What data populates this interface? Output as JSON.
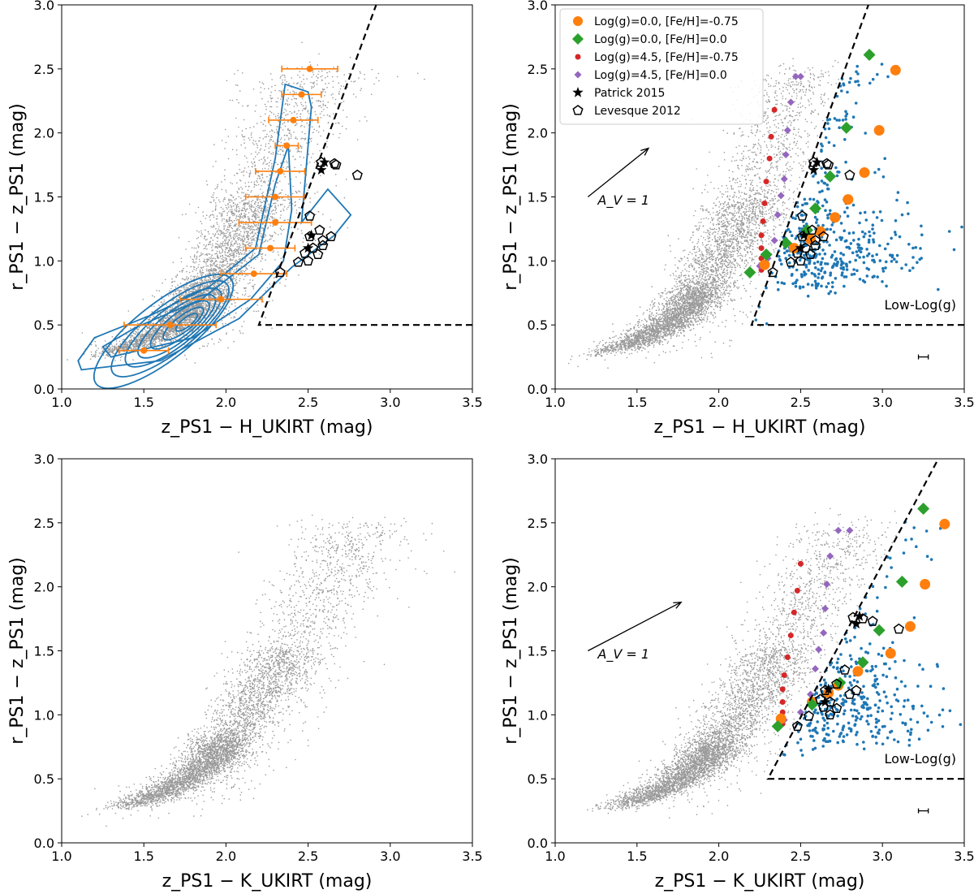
{
  "figure": {
    "colors": {
      "background_points": "#999999",
      "selected_points": "#1f77b4",
      "orange": "#ff7f0e",
      "green": "#2ca02c",
      "red": "#d62728",
      "purple": "#9467bd",
      "contour": "#1f77b4",
      "lines": "#000000"
    }
  },
  "chart_data": [
    {
      "panel": "top-left",
      "type": "scatter",
      "title": "",
      "xlabel": "z_PS1 − H_UKIRT (mag)",
      "ylabel": "r_PS1 − z_PS1 (mag)",
      "xlim": [
        1.0,
        3.5
      ],
      "ylim": [
        0.0,
        3.0
      ],
      "xticks": [
        "1.0",
        "1.5",
        "2.0",
        "2.5",
        "3.0",
        "3.5"
      ],
      "yticks": [
        "0.0",
        "0.5",
        "1.0",
        "1.5",
        "2.0",
        "2.5",
        "3.0"
      ],
      "color_index": "H",
      "has_contours": true,
      "binned_means": {
        "y": [
          0.3,
          0.5,
          0.7,
          0.9,
          1.1,
          1.3,
          1.5,
          1.7,
          1.9,
          2.1,
          2.3,
          2.5
        ],
        "x": [
          1.5,
          1.66,
          1.97,
          2.17,
          2.27,
          2.3,
          2.3,
          2.33,
          2.37,
          2.41,
          2.46,
          2.51
        ],
        "xerr": [
          0.15,
          0.28,
          0.25,
          0.2,
          0.15,
          0.22,
          0.18,
          0.15,
          0.07,
          0.15,
          0.12,
          0.17
        ]
      },
      "patrick2015": {
        "x": [
          2.5,
          2.52,
          2.58,
          2.6
        ],
        "y": [
          1.1,
          1.2,
          1.71,
          1.77
        ]
      },
      "levesque2012": {
        "x": [
          2.33,
          2.44,
          2.48,
          2.53,
          2.51,
          2.57,
          2.59,
          2.64,
          2.66,
          2.58,
          2.67,
          2.8,
          2.51,
          2.56,
          2.59,
          2.5
        ],
        "y": [
          0.91,
          0.99,
          1.06,
          1.1,
          1.19,
          1.24,
          1.16,
          1.19,
          1.76,
          1.77,
          1.75,
          1.67,
          1.35,
          1.05,
          1.12,
          1.0
        ]
      },
      "selection_boundary": {
        "x_min": 2.2,
        "y_min": 0.5,
        "slope": 3.5
      }
    },
    {
      "panel": "top-right",
      "type": "scatter",
      "title": "",
      "xlabel": "z_PS1 − H_UKIRT (mag)",
      "ylabel": "r_PS1 − z_PS1 (mag)",
      "xlim": [
        1.0,
        3.5
      ],
      "ylim": [
        0.0,
        3.0
      ],
      "xticks": [
        "1.0",
        "1.5",
        "2.0",
        "2.5",
        "3.0",
        "3.5"
      ],
      "yticks": [
        "0.0",
        "0.5",
        "1.0",
        "1.5",
        "2.0",
        "2.5",
        "3.0"
      ],
      "color_index": "H",
      "legend": {
        "position": "top-left",
        "entries": [
          {
            "label": "Log(g)=0.0, [Fe/H]=-0.75",
            "marker": "circle-large",
            "color": "#ff7f0e"
          },
          {
            "label": "Log(g)=0.0, [Fe/H]=0.0",
            "marker": "diamond-large",
            "color": "#2ca02c"
          },
          {
            "label": "Log(g)=4.5, [Fe/H]=-0.75",
            "marker": "circle-small",
            "color": "#d62728"
          },
          {
            "label": "Log(g)=4.5, [Fe/H]=0.0",
            "marker": "diamond-small",
            "color": "#9467bd"
          },
          {
            "label": "Patrick 2015",
            "marker": "star",
            "color": "#000000"
          },
          {
            "label": "Levesque 2012",
            "marker": "pentagon-open",
            "color": "#000000"
          }
        ]
      },
      "annotation": "A_V = 1",
      "region_label": "Low-Log(g)",
      "model_logg0_feh075": {
        "x": [
          2.28,
          2.46,
          2.56,
          2.62,
          2.71,
          2.79,
          2.89,
          2.98,
          3.08
        ],
        "y": [
          0.97,
          1.1,
          1.17,
          1.23,
          1.34,
          1.48,
          1.69,
          2.02,
          2.49
        ]
      },
      "model_logg0_feh0": {
        "x": [
          2.19,
          2.29,
          2.41,
          2.54,
          2.59,
          2.68,
          2.78,
          2.92
        ],
        "y": [
          0.91,
          1.05,
          1.14,
          1.24,
          1.41,
          1.66,
          2.04,
          2.61
        ]
      },
      "model_logg45_feh075": {
        "x": [
          2.26,
          2.26,
          2.26,
          2.26,
          2.27,
          2.28,
          2.29,
          2.31,
          2.32,
          2.34
        ],
        "y": [
          0.93,
          1.02,
          1.1,
          1.2,
          1.31,
          1.45,
          1.62,
          1.8,
          1.97,
          2.18
        ]
      },
      "model_logg45_feh0": {
        "x": [
          2.25,
          2.3,
          2.34,
          2.36,
          2.38,
          2.4,
          2.41,
          2.42,
          2.44,
          2.47,
          2.5
        ],
        "y": [
          0.96,
          1.02,
          1.16,
          1.36,
          1.51,
          1.64,
          1.83,
          2.02,
          2.24,
          2.44,
          2.44
        ]
      },
      "patrick2015": {
        "x": [
          2.5,
          2.52,
          2.58,
          2.6
        ],
        "y": [
          1.1,
          1.2,
          1.71,
          1.77
        ]
      },
      "levesque2012": {
        "x": [
          2.33,
          2.44,
          2.48,
          2.53,
          2.51,
          2.57,
          2.59,
          2.64,
          2.66,
          2.58,
          2.67,
          2.8,
          2.51,
          2.56,
          2.59,
          2.5
        ],
        "y": [
          0.91,
          0.99,
          1.06,
          1.1,
          1.19,
          1.24,
          1.16,
          1.19,
          1.76,
          1.77,
          1.75,
          1.67,
          1.35,
          1.05,
          1.12,
          1.0
        ]
      },
      "reddening_vector": {
        "from": [
          1.2,
          1.5
        ],
        "to": [
          1.57,
          1.88
        ]
      },
      "error_bar": {
        "x": 3.25,
        "y": 0.25,
        "xerr": 0.03,
        "yerr": 0.01
      },
      "selection_boundary": {
        "x_min": 2.2,
        "y_min": 0.5,
        "slope": 3.5
      }
    },
    {
      "panel": "bottom-left",
      "type": "scatter",
      "title": "",
      "xlabel": "z_PS1 − K_UKIRT (mag)",
      "ylabel": "r_PS1 − z_PS1 (mag)",
      "xlim": [
        1.0,
        3.5
      ],
      "ylim": [
        0.0,
        3.0
      ],
      "xticks": [
        "1.0",
        "1.5",
        "2.0",
        "2.5",
        "3.0",
        "3.5"
      ],
      "yticks": [
        "0.0",
        "0.5",
        "1.0",
        "1.5",
        "2.0",
        "2.5",
        "3.0"
      ],
      "color_index": "K"
    },
    {
      "panel": "bottom-right",
      "type": "scatter",
      "title": "",
      "xlabel": "z_PS1 − K_UKIRT (mag)",
      "ylabel": "r_PS1 − z_PS1 (mag)",
      "xlim": [
        1.0,
        3.5
      ],
      "ylim": [
        0.0,
        3.0
      ],
      "xticks": [
        "1.0",
        "1.5",
        "2.0",
        "2.5",
        "3.0",
        "3.5"
      ],
      "yticks": [
        "0.0",
        "0.5",
        "1.0",
        "1.5",
        "2.0",
        "2.5",
        "3.0"
      ],
      "color_index": "K",
      "annotation": "A_V = 1",
      "region_label": "Low-Log(g)",
      "model_logg0_feh075": {
        "x": [
          2.38,
          2.57,
          2.67,
          2.73,
          2.85,
          3.05,
          3.17,
          3.26,
          3.38
        ],
        "y": [
          0.97,
          1.1,
          1.17,
          1.23,
          1.34,
          1.48,
          1.69,
          2.02,
          2.49
        ]
      },
      "model_logg0_feh0": {
        "x": [
          2.36,
          2.57,
          2.74,
          2.88,
          2.98,
          3.12,
          3.25
        ],
        "y": [
          0.91,
          1.08,
          1.25,
          1.41,
          1.66,
          2.04,
          2.61
        ]
      },
      "model_logg45_feh075": {
        "x": [
          2.39,
          2.39,
          2.39,
          2.39,
          2.4,
          2.42,
          2.44,
          2.46,
          2.48,
          2.5
        ],
        "y": [
          0.93,
          1.02,
          1.1,
          1.2,
          1.31,
          1.45,
          1.62,
          1.8,
          1.97,
          2.18
        ]
      },
      "model_logg45_feh0": {
        "x": [
          2.4,
          2.5,
          2.56,
          2.59,
          2.61,
          2.64,
          2.65,
          2.66,
          2.68,
          2.73,
          2.8
        ],
        "y": [
          0.96,
          1.02,
          1.16,
          1.36,
          1.51,
          1.64,
          1.83,
          2.02,
          2.24,
          2.44,
          2.44
        ]
      },
      "patrick2015": {
        "x": [
          2.65,
          2.67,
          2.84,
          2.86
        ],
        "y": [
          1.1,
          1.2,
          1.71,
          1.77
        ]
      },
      "levesque2012": {
        "x": [
          2.48,
          2.55,
          2.64,
          2.68,
          2.65,
          2.72,
          2.8,
          2.84,
          2.82,
          2.88,
          2.94,
          3.1,
          2.77,
          2.72,
          2.62,
          2.68
        ],
        "y": [
          0.91,
          0.99,
          1.06,
          1.1,
          1.19,
          1.24,
          1.16,
          1.19,
          1.76,
          1.75,
          1.73,
          1.67,
          1.35,
          1.05,
          1.12,
          1.0
        ]
      },
      "reddening_vector": {
        "from": [
          1.2,
          1.5
        ],
        "to": [
          1.77,
          1.88
        ]
      },
      "error_bar": {
        "x": 3.25,
        "y": 0.25,
        "xerr": 0.03,
        "yerr": 0.01
      },
      "selection_boundary": {
        "x_min": 2.3,
        "y_min": 0.5,
        "slope": 2.4
      }
    }
  ]
}
